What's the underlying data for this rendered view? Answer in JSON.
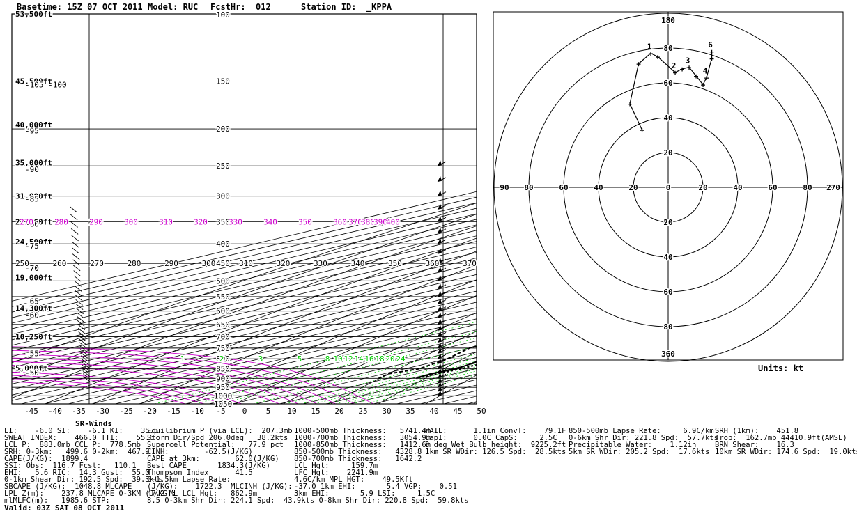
{
  "header": {
    "basetime": "Basetime: 15Z 07 OCT 2011",
    "model": "Model: RUC",
    "fcsthr": "FcstHr:  012",
    "station": "Station ID:  _KPPA"
  },
  "chart_data": [
    {
      "type": "line",
      "name": "skew-t",
      "temp_axis_labels": [
        "-45",
        "-40",
        "-35",
        "-30",
        "-25",
        "-20",
        "-15",
        "-10",
        "-5",
        "0",
        "5",
        "10",
        "15",
        "20",
        "25",
        "30",
        "35",
        "40",
        "45",
        "50"
      ],
      "temp_axis_values": [
        -45,
        -40,
        -35,
        -30,
        -25,
        -20,
        -15,
        -10,
        -5,
        0,
        5,
        10,
        15,
        20,
        25,
        30,
        35,
        40,
        45,
        50
      ],
      "pressure_labels": [
        "100",
        "150",
        "200",
        "250",
        "300",
        "350",
        "400",
        "450",
        "500",
        "550",
        "600",
        "650",
        "700",
        "750",
        "800",
        "850",
        "900",
        "950",
        "1000",
        "1050"
      ],
      "pressure_values": [
        100,
        150,
        200,
        250,
        300,
        350,
        400,
        450,
        500,
        550,
        600,
        650,
        700,
        750,
        800,
        850,
        900,
        950,
        1000,
        1050
      ],
      "height_labels": [
        {
          "text": "53,500ft",
          "p": 100
        },
        {
          "text": "45,500ft",
          "p": 150
        },
        {
          "text": "40,000ft",
          "p": 195
        },
        {
          "text": "35,000ft",
          "p": 245
        },
        {
          "text": "31,000ft",
          "p": 300
        },
        {
          "text": "27,000ft",
          "p": 350
        },
        {
          "text": "24,500ft",
          "p": 395
        },
        {
          "text": "19,000ft",
          "p": 490
        },
        {
          "text": "14,300ft",
          "p": 590
        },
        {
          "text": "10,250ft",
          "p": 700
        },
        {
          "text": "5,000ft",
          "p": 845
        }
      ],
      "isotherm_labels": [
        {
          "text": "-105 -100",
          "p": 153
        },
        {
          "text": "-95",
          "p": 202
        },
        {
          "text": "-90",
          "p": 255
        },
        {
          "text": "-85",
          "p": 305
        },
        {
          "text": "-80",
          "p": 355
        },
        {
          "text": "-75",
          "p": 405
        },
        {
          "text": "-70",
          "p": 463
        },
        {
          "text": "-65",
          "p": 565
        },
        {
          "text": "-60",
          "p": 615
        },
        {
          "text": "-55",
          "p": 775
        },
        {
          "text": "-50",
          "p": 870
        }
      ],
      "theta_labels_450": [
        "250",
        "260",
        "270",
        "280",
        "290",
        "300",
        "310",
        "320",
        "330",
        "340",
        "350",
        "360",
        "370"
      ],
      "theta_e_labels_350": [
        "270",
        "280",
        "290",
        "300",
        "310",
        "320",
        "330",
        "340",
        "350",
        "360",
        "370",
        "380",
        "390",
        "400"
      ],
      "mixing_ratio_labels_800": [
        "1",
        "2",
        "3",
        "5",
        "8",
        "10",
        "12",
        "14",
        "16",
        "18",
        "20",
        "24"
      ],
      "temperature_profile": {
        "p": [
          100,
          150,
          200,
          250,
          300,
          350,
          400,
          450,
          500,
          550,
          600,
          650,
          700,
          725,
          750,
          800,
          850,
          875,
          900
        ],
        "t": [
          -57,
          -56,
          -53,
          -46,
          -38,
          -30,
          -22,
          -16,
          -10,
          -5,
          0,
          4,
          8,
          10,
          11,
          13,
          16,
          15,
          16
        ]
      },
      "dewpoint_profile": {
        "p": [
          100,
          150,
          200,
          250,
          300,
          350,
          400,
          450,
          500,
          550,
          600,
          650,
          700,
          725,
          750,
          800,
          850,
          875,
          900
        ],
        "t": [
          -70,
          -80,
          -78,
          -76,
          -78,
          -75,
          -72,
          -55,
          -40,
          -30,
          -20,
          -10,
          -3,
          -1,
          0,
          5,
          8,
          6,
          8
        ]
      },
      "parcel_profile": {
        "p": [
          100,
          150,
          200,
          250,
          300,
          350,
          400,
          450,
          500,
          550,
          600,
          650,
          700,
          750,
          800,
          850,
          900
        ],
        "t": [
          -63,
          -55,
          -43,
          -32,
          -22,
          -13,
          -5,
          0,
          4,
          8,
          12,
          15,
          17,
          17,
          16,
          17,
          16
        ]
      }
    },
    {
      "type": "scatter",
      "name": "hodograph",
      "ring_labels_top": [
        "100",
        "80",
        "60",
        "40",
        "20"
      ],
      "ring_labels_bottom": [
        "20",
        "40",
        "60",
        "80",
        "360"
      ],
      "ring_labels_left": [
        "90",
        "80",
        "60",
        "40",
        "20"
      ],
      "ring_labels_right": [
        "20",
        "40",
        "60",
        "80",
        "270"
      ],
      "center_label": "0",
      "top_label": "180",
      "height_labels": [
        "1",
        "2",
        "3",
        "4",
        "6"
      ],
      "points": [
        {
          "u": -15,
          "v": -33,
          "label": ""
        },
        {
          "u": -22,
          "v": -48,
          "label": ""
        },
        {
          "u": -17,
          "v": -71,
          "label": ""
        },
        {
          "u": -10,
          "v": -77,
          "label": "1"
        },
        {
          "u": -6,
          "v": -75,
          "label": ""
        },
        {
          "u": 4,
          "v": -66,
          "label": "2"
        },
        {
          "u": 8,
          "v": -68,
          "label": ""
        },
        {
          "u": 12,
          "v": -69,
          "label": "3"
        },
        {
          "u": 16,
          "v": -64,
          "label": ""
        },
        {
          "u": 20,
          "v": -59,
          "label": ""
        },
        {
          "u": 22,
          "v": -63,
          "label": "4"
        },
        {
          "u": 25,
          "v": -74,
          "label": ""
        },
        {
          "u": 25,
          "v": -78,
          "label": "6"
        }
      ]
    }
  ],
  "axes": {
    "top_label": "100",
    "units": "Units: kt",
    "sr_winds": "SR-Winds"
  },
  "params": {
    "col1": [
      "LI:    -6.0 SI:    -6.1 KI:    35.5",
      "SWEAT INDEX:    466.0 TTI:    55.6",
      "LCL P:  883.0mb CCL P:  778.5mb",
      "SRH: 0-3km:   499.6 0-2km:  467.9",
      "CAPE(J/KG):  1899.4",
      "SSI: Obs:  116.7 Fcst:   110.1",
      "EHI:   5.6 RIC:  14.3 Gust:  55.0",
      "0-1km Shear Dir: 192.5 Spd:  39.3kts",
      "SBCAPE (J/KG):  1048.8 MLCAPE",
      "LPL Z(m):    237.8 MLCAPE 0-3KM (J/KG):",
      "mlMLFC(m):   1985.6 STP:"
    ],
    "col2": [
      "Equilibrium P (via LCL):  207.3mb",
      "Storm Dir/Spd 206.0deg   38.2kts",
      "Supercell Potential:   77.9 pct",
      "CINH:        -62.5(J/KG)",
      "CAPE at 3km:        62.0(J/KG)",
      "Best CAPE       1834.3(J/KG)",
      "Thompson Index      41.5",
      "0-1.5km Lapse Rate:",
      "(J/KG):    1722.3  MLCINH (J/KG):",
      "47.2 ML LCL Hgt:   862.9m",
      "8.5 0-3km Shr Dir: 224.1 Spd:  43.9kts 0-8km Shr Dir: 220.8 Spd:  59.8kts"
    ],
    "col3": [
      "1000-500mb Thickness:   5741.4m",
      "1000-700mb Thickness:   3054.9m",
      "1000-850mb Thickness:   1412.6m",
      "850-500mb Thickness:   4328.8",
      "850-700mb Thickness:   1642.2",
      "LCL Hgt:     159.7m",
      "LFC Hgt:    2241.9m",
      "4.6C/km MPL HGT:    49.5Kft",
      "-37.0 1km EHI:       5.4 VGP:    0.51",
      "3km EHI:       5.9 LSI:     1.5C"
    ],
    "col4": [
      "HAIL:      1.1in ConvT:    79.1F",
      "CapI:      0.0C CapS:     2.5C",
      "0 deg Wet Bulb height:  9225.2ft",
      "1km SR WDir: 126.5 Spd:  28.5kts"
    ],
    "col5": [
      "850-500mb Lapse Rate:     6.9C/km",
      "0-6km Shr Dir: 221.8 Spd:  57.7kts",
      "Precipitable Water:    1.12in",
      "5km SR WDir: 205.2 Spd:  17.6kts"
    ],
    "col6": [
      "SRH (1km):    451.8",
      "Trop:  162.7mb 44410.9ft(AMSL)",
      "BRN Shear:    16.3",
      "10km SR WDir: 174.6 Spd:  19.0kts"
    ]
  },
  "valid": "Valid: 03Z SAT 08 OCT 2011",
  "colors": {
    "magenta": "#cc00cc",
    "green": "#00cc00",
    "black": "#000000"
  }
}
